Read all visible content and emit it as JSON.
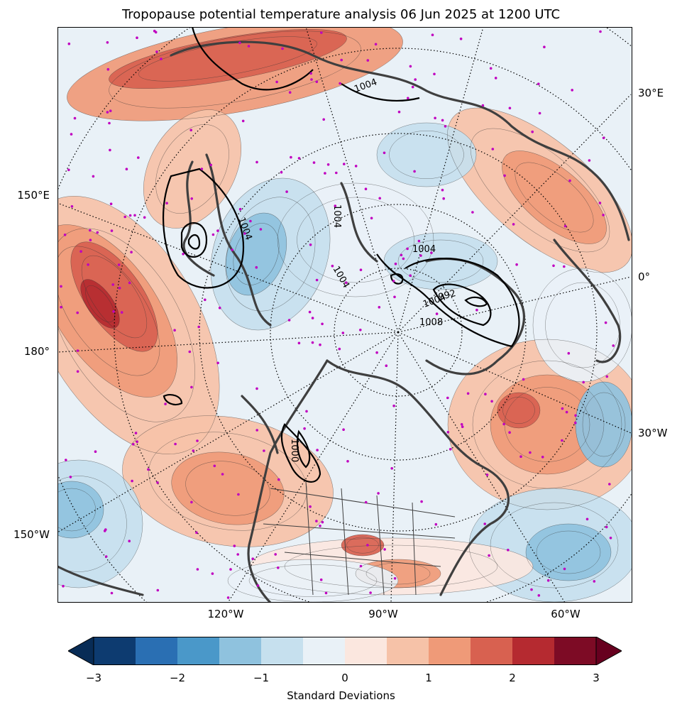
{
  "title": "Tropopause potential temperature analysis 06 Jun 2025 at 1200 UTC",
  "map": {
    "projection": "north-polar-stereographic",
    "lat_labels_right": [
      "30°E",
      "0°",
      "30°W"
    ],
    "lat_labels_left": [
      "150°E",
      "180°",
      "150°W"
    ],
    "lon_labels_bottom": [
      "120°W",
      "90°W",
      "60°W"
    ],
    "contour_labels": [
      "1004",
      "1004",
      "1004",
      "1004",
      "1004",
      "1004",
      "992",
      "1008",
      "1000"
    ],
    "station_color": "#c000c0",
    "coast_color": "#3f3f3f",
    "pressure_contour_color": "#000000"
  },
  "colorbar": {
    "ticks": [
      "−3",
      "−2",
      "−1",
      "0",
      "1",
      "2",
      "3"
    ],
    "label": "Standard Deviations",
    "colors": [
      "#0d3b70",
      "#2a6fb3",
      "#4a98c9",
      "#8fc2de",
      "#c6e0ee",
      "#e9f1f7",
      "#fbe7df",
      "#f6c2a8",
      "#ef9a78",
      "#d86150",
      "#b52a30",
      "#7d0b25"
    ],
    "extend_low_color": "#082c56",
    "extend_high_color": "#67001f"
  }
}
